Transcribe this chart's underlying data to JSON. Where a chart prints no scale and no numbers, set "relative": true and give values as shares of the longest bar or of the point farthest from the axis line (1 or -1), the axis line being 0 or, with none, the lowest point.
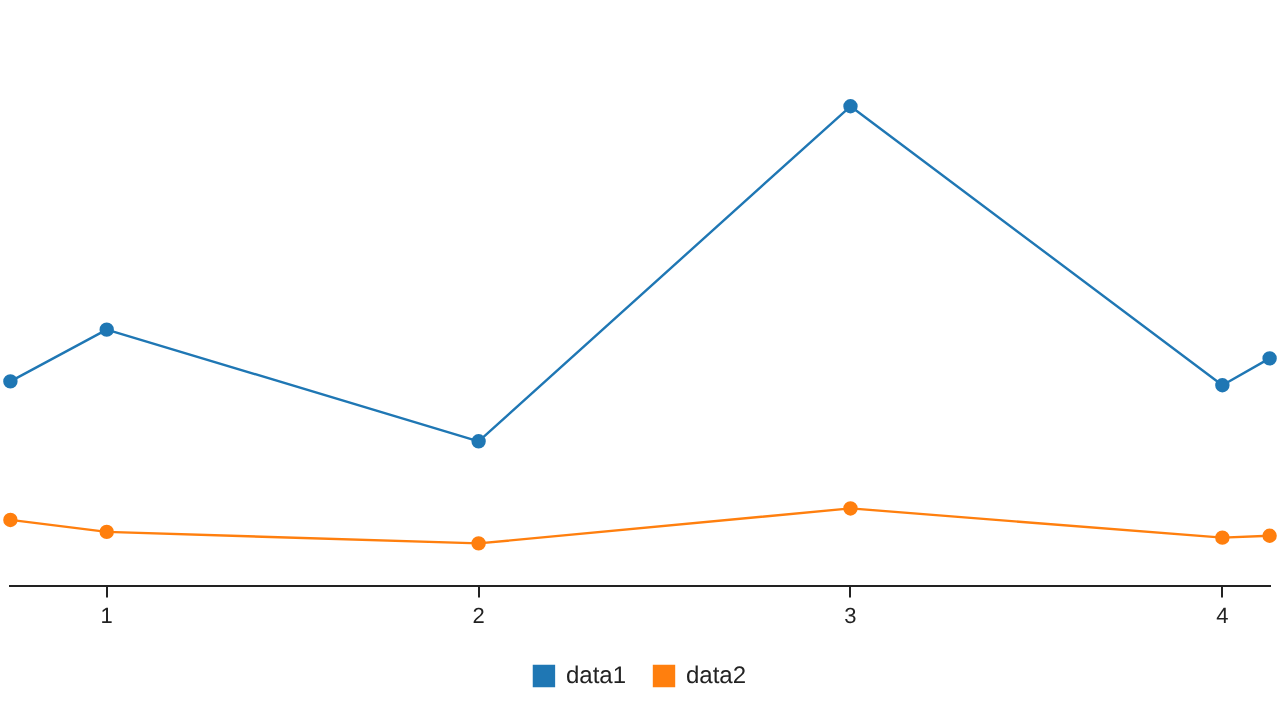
{
  "chart_data": {
    "type": "line",
    "relative": true,
    "x": [
      0.741,
      1,
      2,
      3,
      4,
      4.127
    ],
    "xlim": [
      0.741,
      4.127
    ],
    "xticks": [
      1,
      2,
      3,
      4
    ],
    "series": [
      {
        "name": "data1",
        "color": "#1f77b4",
        "values": [
          0.426,
          0.534,
          0.301,
          1,
          0.418,
          0.474
        ]
      },
      {
        "name": "data2",
        "color": "#ff7f0e",
        "values": [
          0.137,
          0.112,
          0.088,
          0.161,
          0.1,
          0.104
        ]
      }
    ],
    "legend": "bottom",
    "marker": "circle",
    "line_style": "solid",
    "grid": false
  }
}
